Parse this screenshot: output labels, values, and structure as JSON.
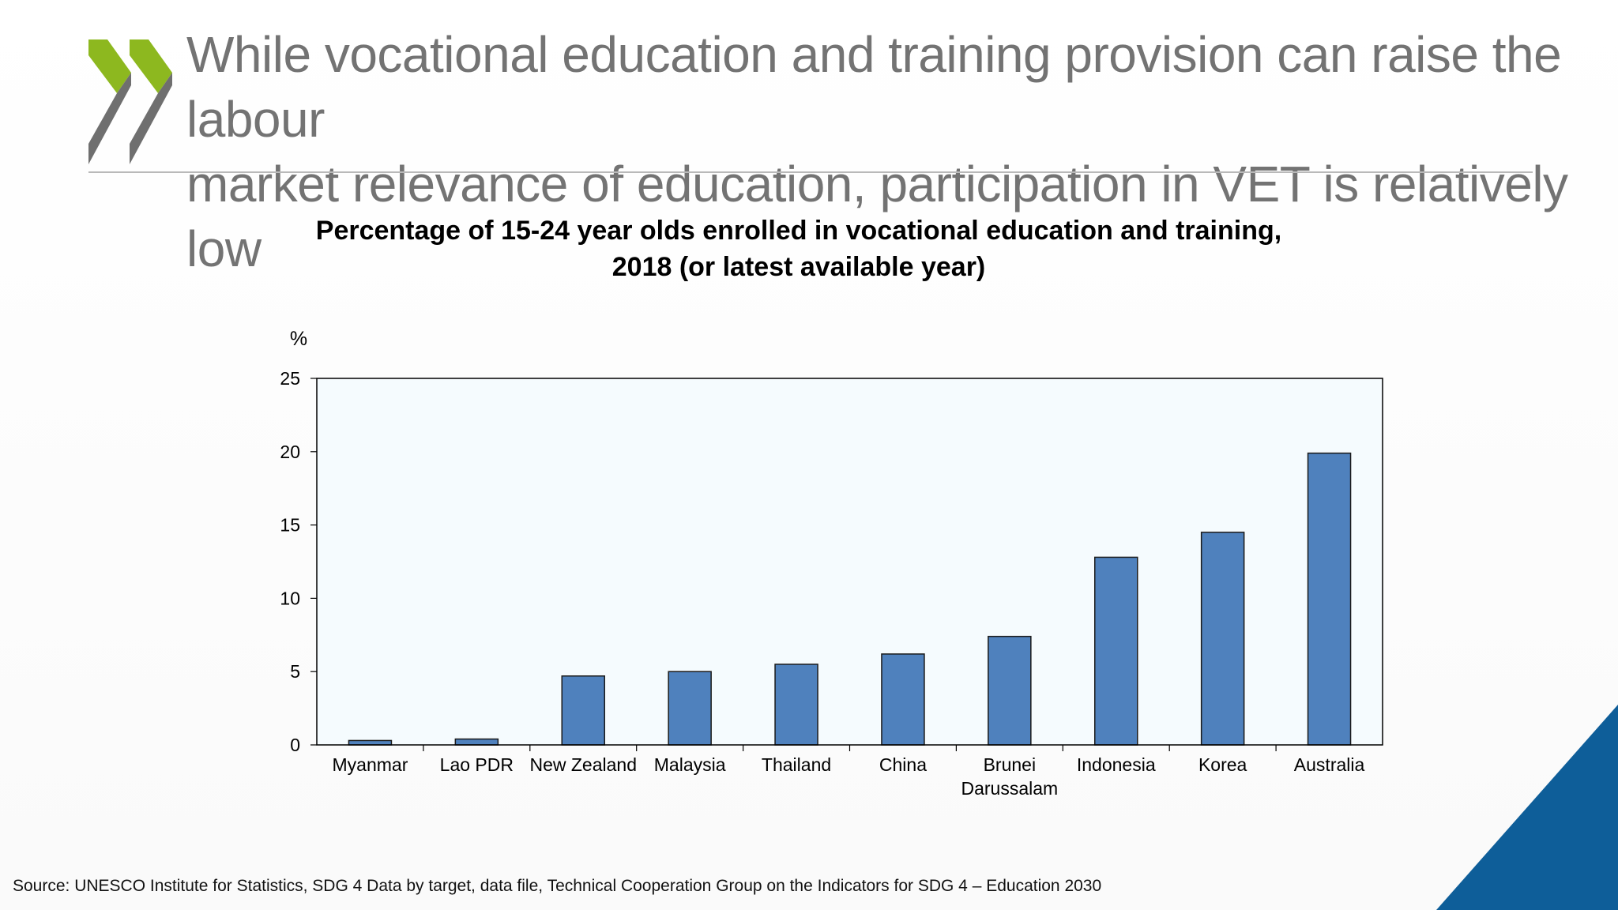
{
  "slide": {
    "title": "While vocational education and training provision can raise the labour\nmarket relevance of education, participation in VET is relatively low",
    "source": "Source: UNESCO Institute for Statistics, SDG 4 Data by target, data file, Technical Cooperation Group on the Indicators for SDG 4 – Education 2030"
  },
  "logo": {
    "icon": "oecd-chevrons-logo",
    "colors": {
      "green": "#8DB81F",
      "grey": "#6F6F6F"
    }
  },
  "corner_accent": {
    "icon": "blue-triangle-corner",
    "color": "#0E5E99"
  },
  "chart_data": {
    "type": "bar",
    "title_lines": [
      "Percentage of 15-24 year olds enrolled in vocational education and training,",
      "2018 (or latest available year)"
    ],
    "ylabel": "%",
    "xlabel": "",
    "ylim": [
      0,
      25
    ],
    "yticks": [
      0,
      5,
      10,
      15,
      20,
      25
    ],
    "categories": [
      [
        "Myanmar"
      ],
      [
        "Lao PDR"
      ],
      [
        "New Zealand"
      ],
      [
        "Malaysia"
      ],
      [
        "Thailand"
      ],
      [
        "China"
      ],
      [
        "Brunei",
        "Darussalam"
      ],
      [
        "Indonesia"
      ],
      [
        "Korea"
      ],
      [
        "Australia"
      ]
    ],
    "values": [
      0.3,
      0.4,
      4.7,
      5.0,
      5.5,
      6.2,
      7.4,
      12.8,
      14.5,
      19.9
    ],
    "grid": false,
    "bar_color": "#4F81BD",
    "plot_background": "#F5FBFE"
  }
}
